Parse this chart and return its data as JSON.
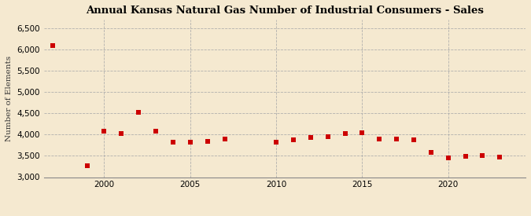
{
  "title": "Annual Kansas Natural Gas Number of Industrial Consumers - Sales",
  "ylabel": "Number of Elements",
  "background_color": "#f5e9d0",
  "plot_background_color": "#f5e9d0",
  "marker_color": "#cc0000",
  "years": [
    1997,
    1999,
    2000,
    2001,
    2002,
    2003,
    2004,
    2005,
    2006,
    2007,
    2010,
    2011,
    2012,
    2013,
    2014,
    2015,
    2016,
    2017,
    2018,
    2019,
    2020,
    2021,
    2022,
    2023
  ],
  "values": [
    6100,
    3270,
    4090,
    4020,
    4530,
    4080,
    3820,
    3830,
    3850,
    3890,
    3830,
    3870,
    3930,
    3960,
    4030,
    4040,
    3900,
    3890,
    3870,
    3580,
    3450,
    3490,
    3500,
    3480
  ],
  "ylim": [
    3000,
    6700
  ],
  "yticks": [
    3000,
    3500,
    4000,
    4500,
    5000,
    5500,
    6000,
    6500
  ],
  "xticks": [
    2000,
    2005,
    2010,
    2015,
    2020
  ],
  "xlim": [
    1996.5,
    2024.5
  ]
}
